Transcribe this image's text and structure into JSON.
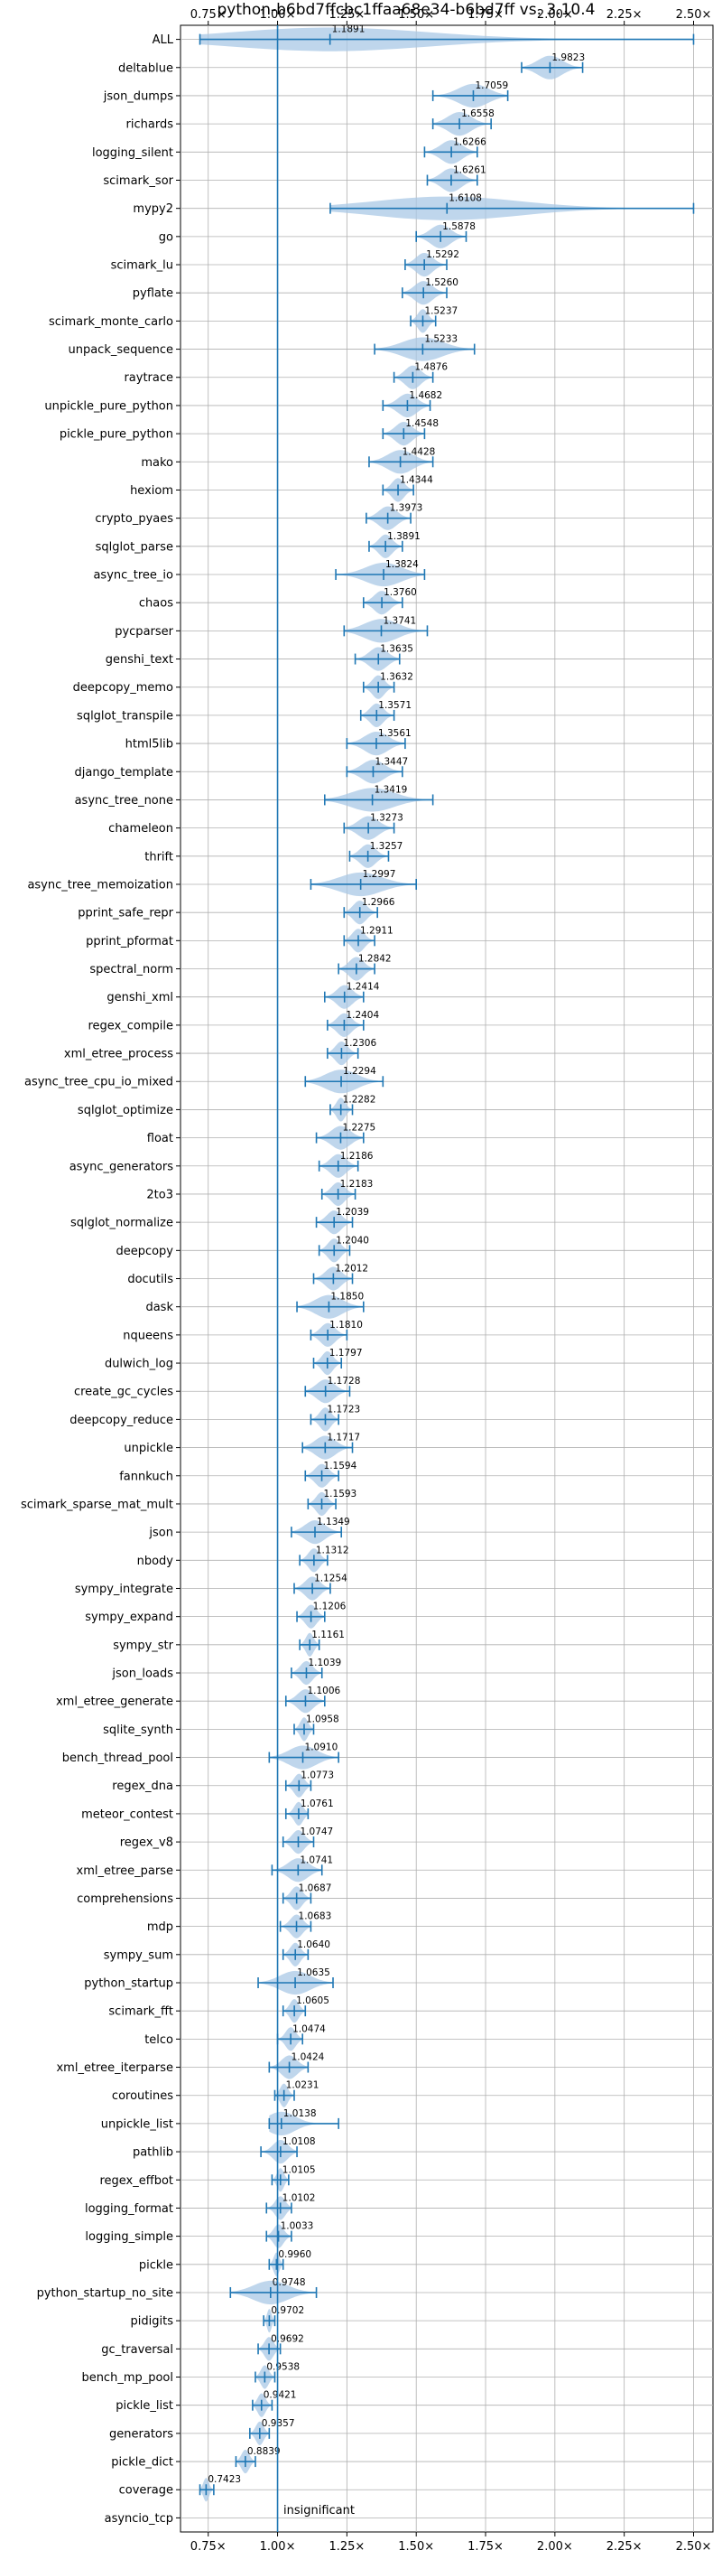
{
  "chart_data": {
    "type": "violin",
    "title": "python-b6bd7ffcbc1ffaa68e34-b6bd7ff vs. 3.10.4",
    "xlabel": "",
    "ylabel": "",
    "xlim": [
      0.65,
      2.57
    ],
    "xticks": [
      0.75,
      1.0,
      1.25,
      1.5,
      1.75,
      2.0,
      2.25,
      2.5
    ],
    "xtick_labels": [
      "0.75×",
      "1.00×",
      "1.25×",
      "1.50×",
      "1.75×",
      "2.00×",
      "2.25×",
      "2.50×"
    ],
    "reference_line": 1.0,
    "grid": true,
    "annotation": "insignificant",
    "colors": {
      "violin": "#a9c8e6",
      "line": "#1f77b4",
      "grid": "#b0b0b0"
    },
    "benchmarks": [
      {
        "name": "ALL",
        "mean": 1.1891,
        "min": 0.72,
        "max": 2.5,
        "label": "1.1891"
      },
      {
        "name": "deltablue",
        "mean": 1.9823,
        "min": 1.88,
        "max": 2.1,
        "label": "1.9823"
      },
      {
        "name": "json_dumps",
        "mean": 1.7059,
        "min": 1.56,
        "max": 1.83,
        "label": "1.7059"
      },
      {
        "name": "richards",
        "mean": 1.6558,
        "min": 1.56,
        "max": 1.77,
        "label": "1.6558"
      },
      {
        "name": "logging_silent",
        "mean": 1.6266,
        "min": 1.53,
        "max": 1.72,
        "label": "1.6266"
      },
      {
        "name": "scimark_sor",
        "mean": 1.6261,
        "min": 1.54,
        "max": 1.72,
        "label": "1.6261"
      },
      {
        "name": "mypy2",
        "mean": 1.6108,
        "min": 1.19,
        "max": 2.5,
        "label": "1.6108"
      },
      {
        "name": "go",
        "mean": 1.5878,
        "min": 1.5,
        "max": 1.68,
        "label": "1.5878"
      },
      {
        "name": "scimark_lu",
        "mean": 1.5292,
        "min": 1.46,
        "max": 1.61,
        "label": "1.5292"
      },
      {
        "name": "pyflate",
        "mean": 1.526,
        "min": 1.45,
        "max": 1.61,
        "label": "1.5260"
      },
      {
        "name": "scimark_monte_carlo",
        "mean": 1.5237,
        "min": 1.48,
        "max": 1.57,
        "label": "1.5237"
      },
      {
        "name": "unpack_sequence",
        "mean": 1.5233,
        "min": 1.35,
        "max": 1.71,
        "label": "1.5233"
      },
      {
        "name": "raytrace",
        "mean": 1.4876,
        "min": 1.42,
        "max": 1.56,
        "label": "1.4876"
      },
      {
        "name": "unpickle_pure_python",
        "mean": 1.4682,
        "min": 1.38,
        "max": 1.55,
        "label": "1.4682"
      },
      {
        "name": "pickle_pure_python",
        "mean": 1.4548,
        "min": 1.38,
        "max": 1.53,
        "label": "1.4548"
      },
      {
        "name": "mako",
        "mean": 1.4428,
        "min": 1.33,
        "max": 1.56,
        "label": "1.4428"
      },
      {
        "name": "hexiom",
        "mean": 1.4344,
        "min": 1.38,
        "max": 1.49,
        "label": "1.4344"
      },
      {
        "name": "crypto_pyaes",
        "mean": 1.3973,
        "min": 1.32,
        "max": 1.48,
        "label": "1.3973"
      },
      {
        "name": "sqlglot_parse",
        "mean": 1.3891,
        "min": 1.33,
        "max": 1.45,
        "label": "1.3891"
      },
      {
        "name": "async_tree_io",
        "mean": 1.3824,
        "min": 1.21,
        "max": 1.53,
        "label": "1.3824"
      },
      {
        "name": "chaos",
        "mean": 1.376,
        "min": 1.31,
        "max": 1.45,
        "label": "1.3760"
      },
      {
        "name": "pycparser",
        "mean": 1.3741,
        "min": 1.24,
        "max": 1.54,
        "label": "1.3741"
      },
      {
        "name": "genshi_text",
        "mean": 1.3635,
        "min": 1.28,
        "max": 1.44,
        "label": "1.3635"
      },
      {
        "name": "deepcopy_memo",
        "mean": 1.3632,
        "min": 1.31,
        "max": 1.42,
        "label": "1.3632"
      },
      {
        "name": "sqlglot_transpile",
        "mean": 1.3571,
        "min": 1.3,
        "max": 1.42,
        "label": "1.3571"
      },
      {
        "name": "html5lib",
        "mean": 1.3561,
        "min": 1.25,
        "max": 1.46,
        "label": "1.3561"
      },
      {
        "name": "django_template",
        "mean": 1.3447,
        "min": 1.25,
        "max": 1.45,
        "label": "1.3447"
      },
      {
        "name": "async_tree_none",
        "mean": 1.3419,
        "min": 1.17,
        "max": 1.56,
        "label": "1.3419"
      },
      {
        "name": "chameleon",
        "mean": 1.3273,
        "min": 1.24,
        "max": 1.42,
        "label": "1.3273"
      },
      {
        "name": "thrift",
        "mean": 1.3257,
        "min": 1.26,
        "max": 1.4,
        "label": "1.3257"
      },
      {
        "name": "async_tree_memoization",
        "mean": 1.2997,
        "min": 1.12,
        "max": 1.5,
        "label": "1.2997"
      },
      {
        "name": "pprint_safe_repr",
        "mean": 1.2966,
        "min": 1.24,
        "max": 1.36,
        "label": "1.2966"
      },
      {
        "name": "pprint_pformat",
        "mean": 1.2911,
        "min": 1.24,
        "max": 1.35,
        "label": "1.2911"
      },
      {
        "name": "spectral_norm",
        "mean": 1.2842,
        "min": 1.22,
        "max": 1.35,
        "label": "1.2842"
      },
      {
        "name": "genshi_xml",
        "mean": 1.2414,
        "min": 1.17,
        "max": 1.31,
        "label": "1.2414"
      },
      {
        "name": "regex_compile",
        "mean": 1.2404,
        "min": 1.18,
        "max": 1.31,
        "label": "1.2404"
      },
      {
        "name": "xml_etree_process",
        "mean": 1.2306,
        "min": 1.18,
        "max": 1.29,
        "label": "1.2306"
      },
      {
        "name": "async_tree_cpu_io_mixed",
        "mean": 1.2294,
        "min": 1.1,
        "max": 1.38,
        "label": "1.2294"
      },
      {
        "name": "sqlglot_optimize",
        "mean": 1.2282,
        "min": 1.19,
        "max": 1.27,
        "label": "1.2282"
      },
      {
        "name": "float",
        "mean": 1.2275,
        "min": 1.14,
        "max": 1.31,
        "label": "1.2275"
      },
      {
        "name": "async_generators",
        "mean": 1.2186,
        "min": 1.15,
        "max": 1.29,
        "label": "1.2186"
      },
      {
        "name": "2to3",
        "mean": 1.2183,
        "min": 1.16,
        "max": 1.28,
        "label": "1.2183"
      },
      {
        "name": "sqlglot_normalize",
        "mean": 1.2039,
        "min": 1.14,
        "max": 1.27,
        "label": "1.2039"
      },
      {
        "name": "deepcopy",
        "mean": 1.204,
        "min": 1.15,
        "max": 1.26,
        "label": "1.2040"
      },
      {
        "name": "docutils",
        "mean": 1.2012,
        "min": 1.13,
        "max": 1.27,
        "label": "1.2012"
      },
      {
        "name": "dask",
        "mean": 1.185,
        "min": 1.07,
        "max": 1.31,
        "label": "1.1850"
      },
      {
        "name": "nqueens",
        "mean": 1.181,
        "min": 1.12,
        "max": 1.25,
        "label": "1.1810"
      },
      {
        "name": "dulwich_log",
        "mean": 1.1797,
        "min": 1.13,
        "max": 1.23,
        "label": "1.1797"
      },
      {
        "name": "create_gc_cycles",
        "mean": 1.1728,
        "min": 1.1,
        "max": 1.26,
        "label": "1.1728"
      },
      {
        "name": "deepcopy_reduce",
        "mean": 1.1723,
        "min": 1.12,
        "max": 1.22,
        "label": "1.1723"
      },
      {
        "name": "unpickle",
        "mean": 1.1717,
        "min": 1.09,
        "max": 1.27,
        "label": "1.1717"
      },
      {
        "name": "fannkuch",
        "mean": 1.1594,
        "min": 1.1,
        "max": 1.22,
        "label": "1.1594"
      },
      {
        "name": "scimark_sparse_mat_mult",
        "mean": 1.1593,
        "min": 1.11,
        "max": 1.21,
        "label": "1.1593"
      },
      {
        "name": "json",
        "mean": 1.1349,
        "min": 1.05,
        "max": 1.23,
        "label": "1.1349"
      },
      {
        "name": "nbody",
        "mean": 1.1312,
        "min": 1.08,
        "max": 1.18,
        "label": "1.1312"
      },
      {
        "name": "sympy_integrate",
        "mean": 1.1254,
        "min": 1.06,
        "max": 1.19,
        "label": "1.1254"
      },
      {
        "name": "sympy_expand",
        "mean": 1.1206,
        "min": 1.07,
        "max": 1.17,
        "label": "1.1206"
      },
      {
        "name": "sympy_str",
        "mean": 1.1161,
        "min": 1.08,
        "max": 1.15,
        "label": "1.1161"
      },
      {
        "name": "json_loads",
        "mean": 1.1039,
        "min": 1.05,
        "max": 1.16,
        "label": "1.1039"
      },
      {
        "name": "xml_etree_generate",
        "mean": 1.1006,
        "min": 1.03,
        "max": 1.17,
        "label": "1.1006"
      },
      {
        "name": "sqlite_synth",
        "mean": 1.0958,
        "min": 1.06,
        "max": 1.13,
        "label": "1.0958"
      },
      {
        "name": "bench_thread_pool",
        "mean": 1.091,
        "min": 0.97,
        "max": 1.22,
        "label": "1.0910"
      },
      {
        "name": "regex_dna",
        "mean": 1.0773,
        "min": 1.03,
        "max": 1.12,
        "label": "1.0773"
      },
      {
        "name": "meteor_contest",
        "mean": 1.0761,
        "min": 1.03,
        "max": 1.11,
        "label": "1.0761"
      },
      {
        "name": "regex_v8",
        "mean": 1.0747,
        "min": 1.02,
        "max": 1.13,
        "label": "1.0747"
      },
      {
        "name": "xml_etree_parse",
        "mean": 1.0741,
        "min": 0.98,
        "max": 1.16,
        "label": "1.0741"
      },
      {
        "name": "comprehensions",
        "mean": 1.0687,
        "min": 1.02,
        "max": 1.12,
        "label": "1.0687"
      },
      {
        "name": "mdp",
        "mean": 1.0683,
        "min": 1.01,
        "max": 1.12,
        "label": "1.0683"
      },
      {
        "name": "sympy_sum",
        "mean": 1.064,
        "min": 1.02,
        "max": 1.11,
        "label": "1.0640"
      },
      {
        "name": "python_startup",
        "mean": 1.0635,
        "min": 0.93,
        "max": 1.2,
        "label": "1.0635"
      },
      {
        "name": "scimark_fft",
        "mean": 1.0605,
        "min": 1.02,
        "max": 1.1,
        "label": "1.0605"
      },
      {
        "name": "telco",
        "mean": 1.0474,
        "min": 1.0,
        "max": 1.09,
        "label": "1.0474"
      },
      {
        "name": "xml_etree_iterparse",
        "mean": 1.0424,
        "min": 0.97,
        "max": 1.11,
        "label": "1.0424"
      },
      {
        "name": "coroutines",
        "mean": 1.0231,
        "min": 0.99,
        "max": 1.06,
        "label": "1.0231"
      },
      {
        "name": "unpickle_list",
        "mean": 1.0138,
        "min": 0.97,
        "max": 1.22,
        "label": "1.0138"
      },
      {
        "name": "pathlib",
        "mean": 1.0108,
        "min": 0.94,
        "max": 1.07,
        "label": "1.0108"
      },
      {
        "name": "regex_effbot",
        "mean": 1.0105,
        "min": 0.98,
        "max": 1.04,
        "label": "1.0105"
      },
      {
        "name": "logging_format",
        "mean": 1.0102,
        "min": 0.96,
        "max": 1.05,
        "label": "1.0102"
      },
      {
        "name": "logging_simple",
        "mean": 1.0033,
        "min": 0.96,
        "max": 1.05,
        "label": "1.0033"
      },
      {
        "name": "pickle",
        "mean": 0.996,
        "min": 0.97,
        "max": 1.02,
        "label": "0.9960"
      },
      {
        "name": "python_startup_no_site",
        "mean": 0.9748,
        "min": 0.83,
        "max": 1.14,
        "label": "0.9748"
      },
      {
        "name": "pidigits",
        "mean": 0.9702,
        "min": 0.95,
        "max": 0.99,
        "label": "0.9702"
      },
      {
        "name": "gc_traversal",
        "mean": 0.9692,
        "min": 0.93,
        "max": 1.01,
        "label": "0.9692"
      },
      {
        "name": "bench_mp_pool",
        "mean": 0.9538,
        "min": 0.92,
        "max": 0.99,
        "label": "0.9538"
      },
      {
        "name": "pickle_list",
        "mean": 0.9421,
        "min": 0.91,
        "max": 0.98,
        "label": "0.9421"
      },
      {
        "name": "generators",
        "mean": 0.9357,
        "min": 0.9,
        "max": 0.97,
        "label": "0.9357"
      },
      {
        "name": "pickle_dict",
        "mean": 0.8839,
        "min": 0.85,
        "max": 0.92,
        "label": "0.8839"
      },
      {
        "name": "coverage",
        "mean": 0.7423,
        "min": 0.72,
        "max": 0.77,
        "label": "0.7423"
      },
      {
        "name": "asyncio_tcp",
        "mean": null,
        "min": null,
        "max": null,
        "label": ""
      }
    ]
  }
}
